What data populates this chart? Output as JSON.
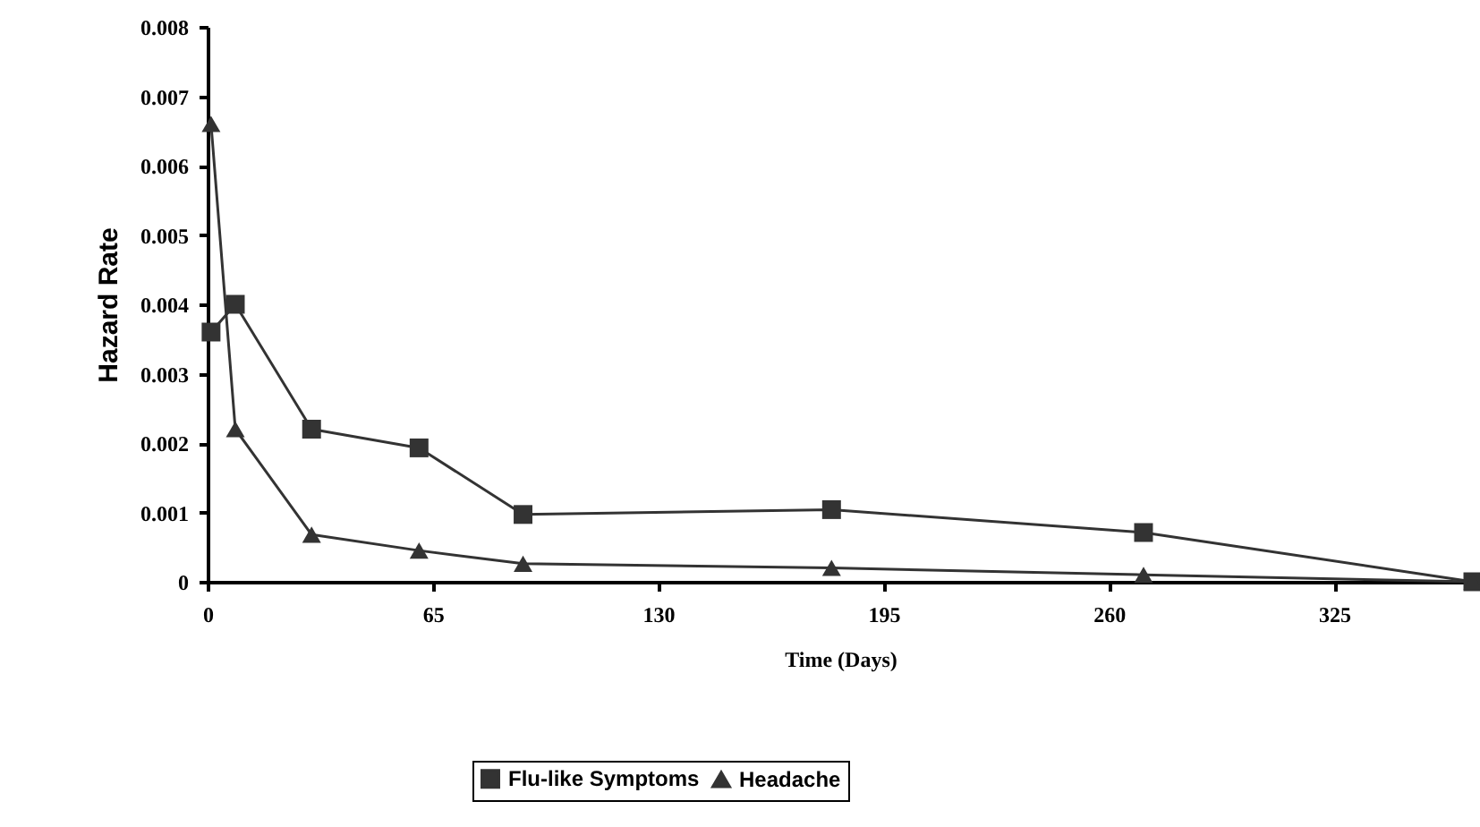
{
  "chart_data": {
    "type": "line",
    "xlabel": "Time (Days)",
    "ylabel": "Hazard Rate",
    "xlim": [
      0,
      365
    ],
    "xticks": [
      0,
      65,
      130,
      195,
      260,
      325
    ],
    "ylim": [
      0,
      0.008
    ],
    "yticks": [
      0,
      0.001,
      0.002,
      0.003,
      0.004,
      0.005,
      0.006,
      0.007,
      0.008
    ],
    "grid": false,
    "legend": "bottom",
    "line_style": "solid",
    "series": [
      {
        "name": "Flu-like Symptoms",
        "color": "#333333",
        "marker": "square",
        "x": [
          1,
          8,
          30,
          61,
          91,
          180,
          270,
          365
        ],
        "values": [
          0.0036,
          0.004,
          0.0022,
          0.00193,
          0.00097,
          0.00104,
          0.00071,
          0
        ]
      },
      {
        "name": "Headache",
        "color": "#333333",
        "marker": "triangle",
        "x": [
          1,
          8,
          30,
          61,
          91,
          180,
          270,
          365
        ],
        "values": [
          0.0066,
          0.0022,
          0.00068,
          0.00045,
          0.00026,
          0.0002,
          0.0001,
          0
        ]
      }
    ]
  }
}
